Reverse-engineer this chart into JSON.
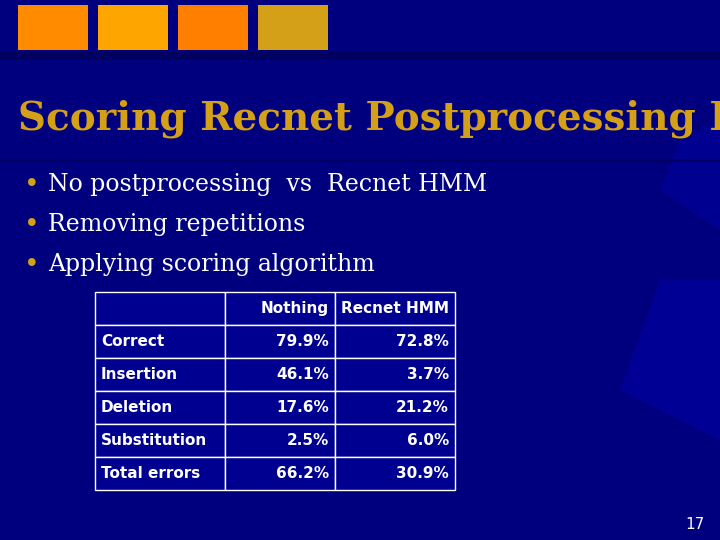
{
  "title": "Scoring Recnet Postprocessing HMM",
  "title_color": "#D4A017",
  "bg_color": "#00007F",
  "bullet_color": "#D4A017",
  "bullet_text_color": "#FFFFFF",
  "bullets": [
    "No postprocessing  vs  Recnet HMM",
    "Removing repetitions",
    "Applying scoring algorithm"
  ],
  "table_headers": [
    "",
    "Nothing",
    "Recnet HMM"
  ],
  "table_rows": [
    [
      "Correct",
      "79.9%",
      "72.8%"
    ],
    [
      "Insertion",
      "46.1%",
      "3.7%"
    ],
    [
      "Deletion",
      "17.6%",
      "21.2%"
    ],
    [
      "Substitution",
      "2.5%",
      "6.0%"
    ],
    [
      "Total errors",
      "66.2%",
      "30.9%"
    ]
  ],
  "table_border_color": "#FFFFFF",
  "table_cell_bg": "#000090",
  "table_text_color": "#FFFFFF",
  "table_header_text_color": "#FFFFFF",
  "deco_colors": [
    "#FF8C00",
    "#FFA500",
    "#FF8000",
    "#D4A017"
  ],
  "slide_number": "17",
  "slide_number_color": "#FFFFFF",
  "title_fontsize": 28,
  "bullet_fontsize": 17,
  "table_fontsize": 11
}
